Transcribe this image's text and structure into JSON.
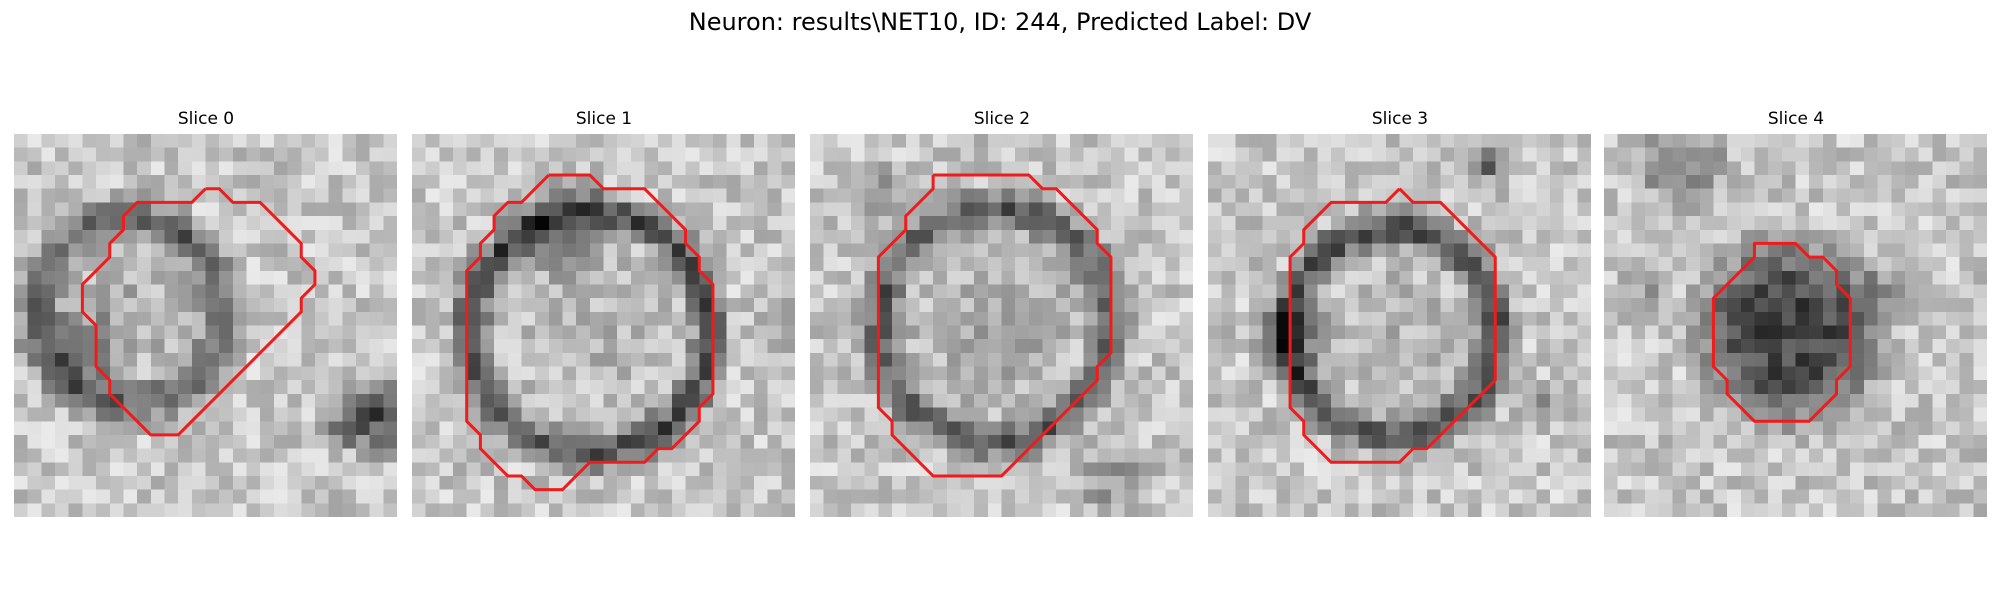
{
  "figure": {
    "title": "Neuron: results\\NET10, ID: 244, Predicted Label: DV"
  },
  "colors": {
    "contour": "#ee1c1c",
    "background": "#ffffff"
  },
  "panels": [
    {
      "title": "Slice 0",
      "contour": [
        [
          14,
          4
        ],
        [
          15,
          4
        ],
        [
          16,
          5
        ],
        [
          18,
          5
        ],
        [
          19,
          6
        ],
        [
          20,
          7
        ],
        [
          21,
          8
        ],
        [
          21,
          9
        ],
        [
          22,
          10
        ],
        [
          22,
          11
        ],
        [
          21,
          12
        ],
        [
          21,
          13
        ],
        [
          20,
          14
        ],
        [
          19,
          15
        ],
        [
          18,
          16
        ],
        [
          17,
          17
        ],
        [
          16,
          18
        ],
        [
          15,
          19
        ],
        [
          14,
          20
        ],
        [
          13,
          21
        ],
        [
          12,
          22
        ],
        [
          11,
          22
        ],
        [
          10,
          22
        ],
        [
          9,
          21
        ],
        [
          8,
          20
        ],
        [
          7,
          19
        ],
        [
          7,
          18
        ],
        [
          6,
          17
        ],
        [
          6,
          16
        ],
        [
          6,
          15
        ],
        [
          6,
          14
        ],
        [
          5,
          13
        ],
        [
          5,
          12
        ],
        [
          5,
          11
        ],
        [
          6,
          10
        ],
        [
          7,
          9
        ],
        [
          7,
          8
        ],
        [
          8,
          7
        ],
        [
          8,
          6
        ],
        [
          9,
          5
        ],
        [
          10,
          5
        ],
        [
          11,
          5
        ],
        [
          12,
          5
        ],
        [
          13,
          5
        ],
        [
          14,
          4
        ]
      ]
    },
    {
      "title": "Slice 1",
      "contour": [
        [
          10,
          3
        ],
        [
          11,
          3
        ],
        [
          12,
          3
        ],
        [
          13,
          3
        ],
        [
          14,
          4
        ],
        [
          15,
          4
        ],
        [
          16,
          4
        ],
        [
          17,
          4
        ],
        [
          18,
          5
        ],
        [
          19,
          6
        ],
        [
          20,
          7
        ],
        [
          20,
          8
        ],
        [
          21,
          9
        ],
        [
          21,
          10
        ],
        [
          22,
          11
        ],
        [
          22,
          12
        ],
        [
          22,
          13
        ],
        [
          22,
          14
        ],
        [
          22,
          15
        ],
        [
          22,
          16
        ],
        [
          22,
          17
        ],
        [
          22,
          18
        ],
        [
          22,
          19
        ],
        [
          21,
          20
        ],
        [
          21,
          21
        ],
        [
          20,
          22
        ],
        [
          19,
          23
        ],
        [
          18,
          23
        ],
        [
          17,
          24
        ],
        [
          16,
          24
        ],
        [
          15,
          24
        ],
        [
          14,
          24
        ],
        [
          13,
          24
        ],
        [
          12,
          25
        ],
        [
          11,
          26
        ],
        [
          10,
          26
        ],
        [
          9,
          26
        ],
        [
          8,
          25
        ],
        [
          7,
          25
        ],
        [
          6,
          24
        ],
        [
          5,
          23
        ],
        [
          5,
          22
        ],
        [
          4,
          21
        ],
        [
          4,
          20
        ],
        [
          4,
          19
        ],
        [
          4,
          18
        ],
        [
          4,
          17
        ],
        [
          4,
          16
        ],
        [
          4,
          15
        ],
        [
          4,
          14
        ],
        [
          4,
          13
        ],
        [
          4,
          12
        ],
        [
          4,
          11
        ],
        [
          4,
          10
        ],
        [
          5,
          9
        ],
        [
          5,
          8
        ],
        [
          6,
          7
        ],
        [
          6,
          6
        ],
        [
          7,
          5
        ],
        [
          8,
          5
        ],
        [
          9,
          4
        ],
        [
          10,
          3
        ]
      ]
    },
    {
      "title": "Slice 2",
      "contour": [
        [
          9,
          3
        ],
        [
          10,
          3
        ],
        [
          11,
          3
        ],
        [
          12,
          3
        ],
        [
          13,
          3
        ],
        [
          14,
          3
        ],
        [
          15,
          3
        ],
        [
          16,
          3
        ],
        [
          17,
          4
        ],
        [
          18,
          4
        ],
        [
          19,
          5
        ],
        [
          20,
          6
        ],
        [
          21,
          7
        ],
        [
          21,
          8
        ],
        [
          22,
          9
        ],
        [
          22,
          10
        ],
        [
          22,
          11
        ],
        [
          22,
          12
        ],
        [
          22,
          13
        ],
        [
          22,
          14
        ],
        [
          22,
          15
        ],
        [
          22,
          16
        ],
        [
          21,
          17
        ],
        [
          21,
          18
        ],
        [
          20,
          19
        ],
        [
          19,
          20
        ],
        [
          18,
          21
        ],
        [
          17,
          22
        ],
        [
          16,
          23
        ],
        [
          15,
          24
        ],
        [
          14,
          25
        ],
        [
          13,
          25
        ],
        [
          12,
          25
        ],
        [
          11,
          25
        ],
        [
          10,
          25
        ],
        [
          9,
          25
        ],
        [
          8,
          24
        ],
        [
          7,
          23
        ],
        [
          6,
          22
        ],
        [
          6,
          21
        ],
        [
          5,
          20
        ],
        [
          5,
          19
        ],
        [
          5,
          18
        ],
        [
          5,
          17
        ],
        [
          5,
          16
        ],
        [
          5,
          15
        ],
        [
          5,
          14
        ],
        [
          5,
          13
        ],
        [
          5,
          12
        ],
        [
          5,
          11
        ],
        [
          5,
          10
        ],
        [
          5,
          9
        ],
        [
          6,
          8
        ],
        [
          7,
          7
        ],
        [
          7,
          6
        ],
        [
          8,
          5
        ],
        [
          9,
          4
        ],
        [
          9,
          3
        ]
      ]
    },
    {
      "title": "Slice 3",
      "contour": [
        [
          14,
          4
        ],
        [
          15,
          5
        ],
        [
          16,
          5
        ],
        [
          17,
          5
        ],
        [
          18,
          6
        ],
        [
          19,
          7
        ],
        [
          20,
          8
        ],
        [
          21,
          9
        ],
        [
          21,
          10
        ],
        [
          21,
          11
        ],
        [
          21,
          12
        ],
        [
          21,
          13
        ],
        [
          21,
          14
        ],
        [
          21,
          15
        ],
        [
          21,
          16
        ],
        [
          21,
          17
        ],
        [
          21,
          18
        ],
        [
          20,
          19
        ],
        [
          19,
          20
        ],
        [
          18,
          21
        ],
        [
          17,
          22
        ],
        [
          16,
          23
        ],
        [
          15,
          23
        ],
        [
          14,
          24
        ],
        [
          13,
          24
        ],
        [
          12,
          24
        ],
        [
          11,
          24
        ],
        [
          10,
          24
        ],
        [
          9,
          24
        ],
        [
          8,
          23
        ],
        [
          7,
          22
        ],
        [
          7,
          21
        ],
        [
          6,
          20
        ],
        [
          6,
          19
        ],
        [
          6,
          18
        ],
        [
          6,
          17
        ],
        [
          6,
          16
        ],
        [
          6,
          15
        ],
        [
          6,
          14
        ],
        [
          6,
          13
        ],
        [
          6,
          12
        ],
        [
          6,
          11
        ],
        [
          6,
          10
        ],
        [
          6,
          9
        ],
        [
          7,
          8
        ],
        [
          7,
          7
        ],
        [
          8,
          6
        ],
        [
          9,
          5
        ],
        [
          10,
          5
        ],
        [
          11,
          5
        ],
        [
          12,
          5
        ],
        [
          13,
          5
        ],
        [
          14,
          4
        ]
      ]
    },
    {
      "title": "Slice 4",
      "contour": [
        [
          12,
          8
        ],
        [
          13,
          8
        ],
        [
          14,
          8
        ],
        [
          15,
          9
        ],
        [
          16,
          9
        ],
        [
          17,
          10
        ],
        [
          17,
          11
        ],
        [
          18,
          12
        ],
        [
          18,
          13
        ],
        [
          18,
          14
        ],
        [
          18,
          15
        ],
        [
          18,
          16
        ],
        [
          18,
          17
        ],
        [
          17,
          18
        ],
        [
          17,
          19
        ],
        [
          16,
          20
        ],
        [
          15,
          21
        ],
        [
          14,
          21
        ],
        [
          13,
          21
        ],
        [
          12,
          21
        ],
        [
          11,
          21
        ],
        [
          10,
          20
        ],
        [
          9,
          19
        ],
        [
          9,
          18
        ],
        [
          8,
          17
        ],
        [
          8,
          16
        ],
        [
          8,
          15
        ],
        [
          8,
          14
        ],
        [
          8,
          13
        ],
        [
          8,
          12
        ],
        [
          9,
          11
        ],
        [
          10,
          10
        ],
        [
          11,
          9
        ],
        [
          11,
          8
        ],
        [
          12,
          8
        ]
      ]
    }
  ]
}
